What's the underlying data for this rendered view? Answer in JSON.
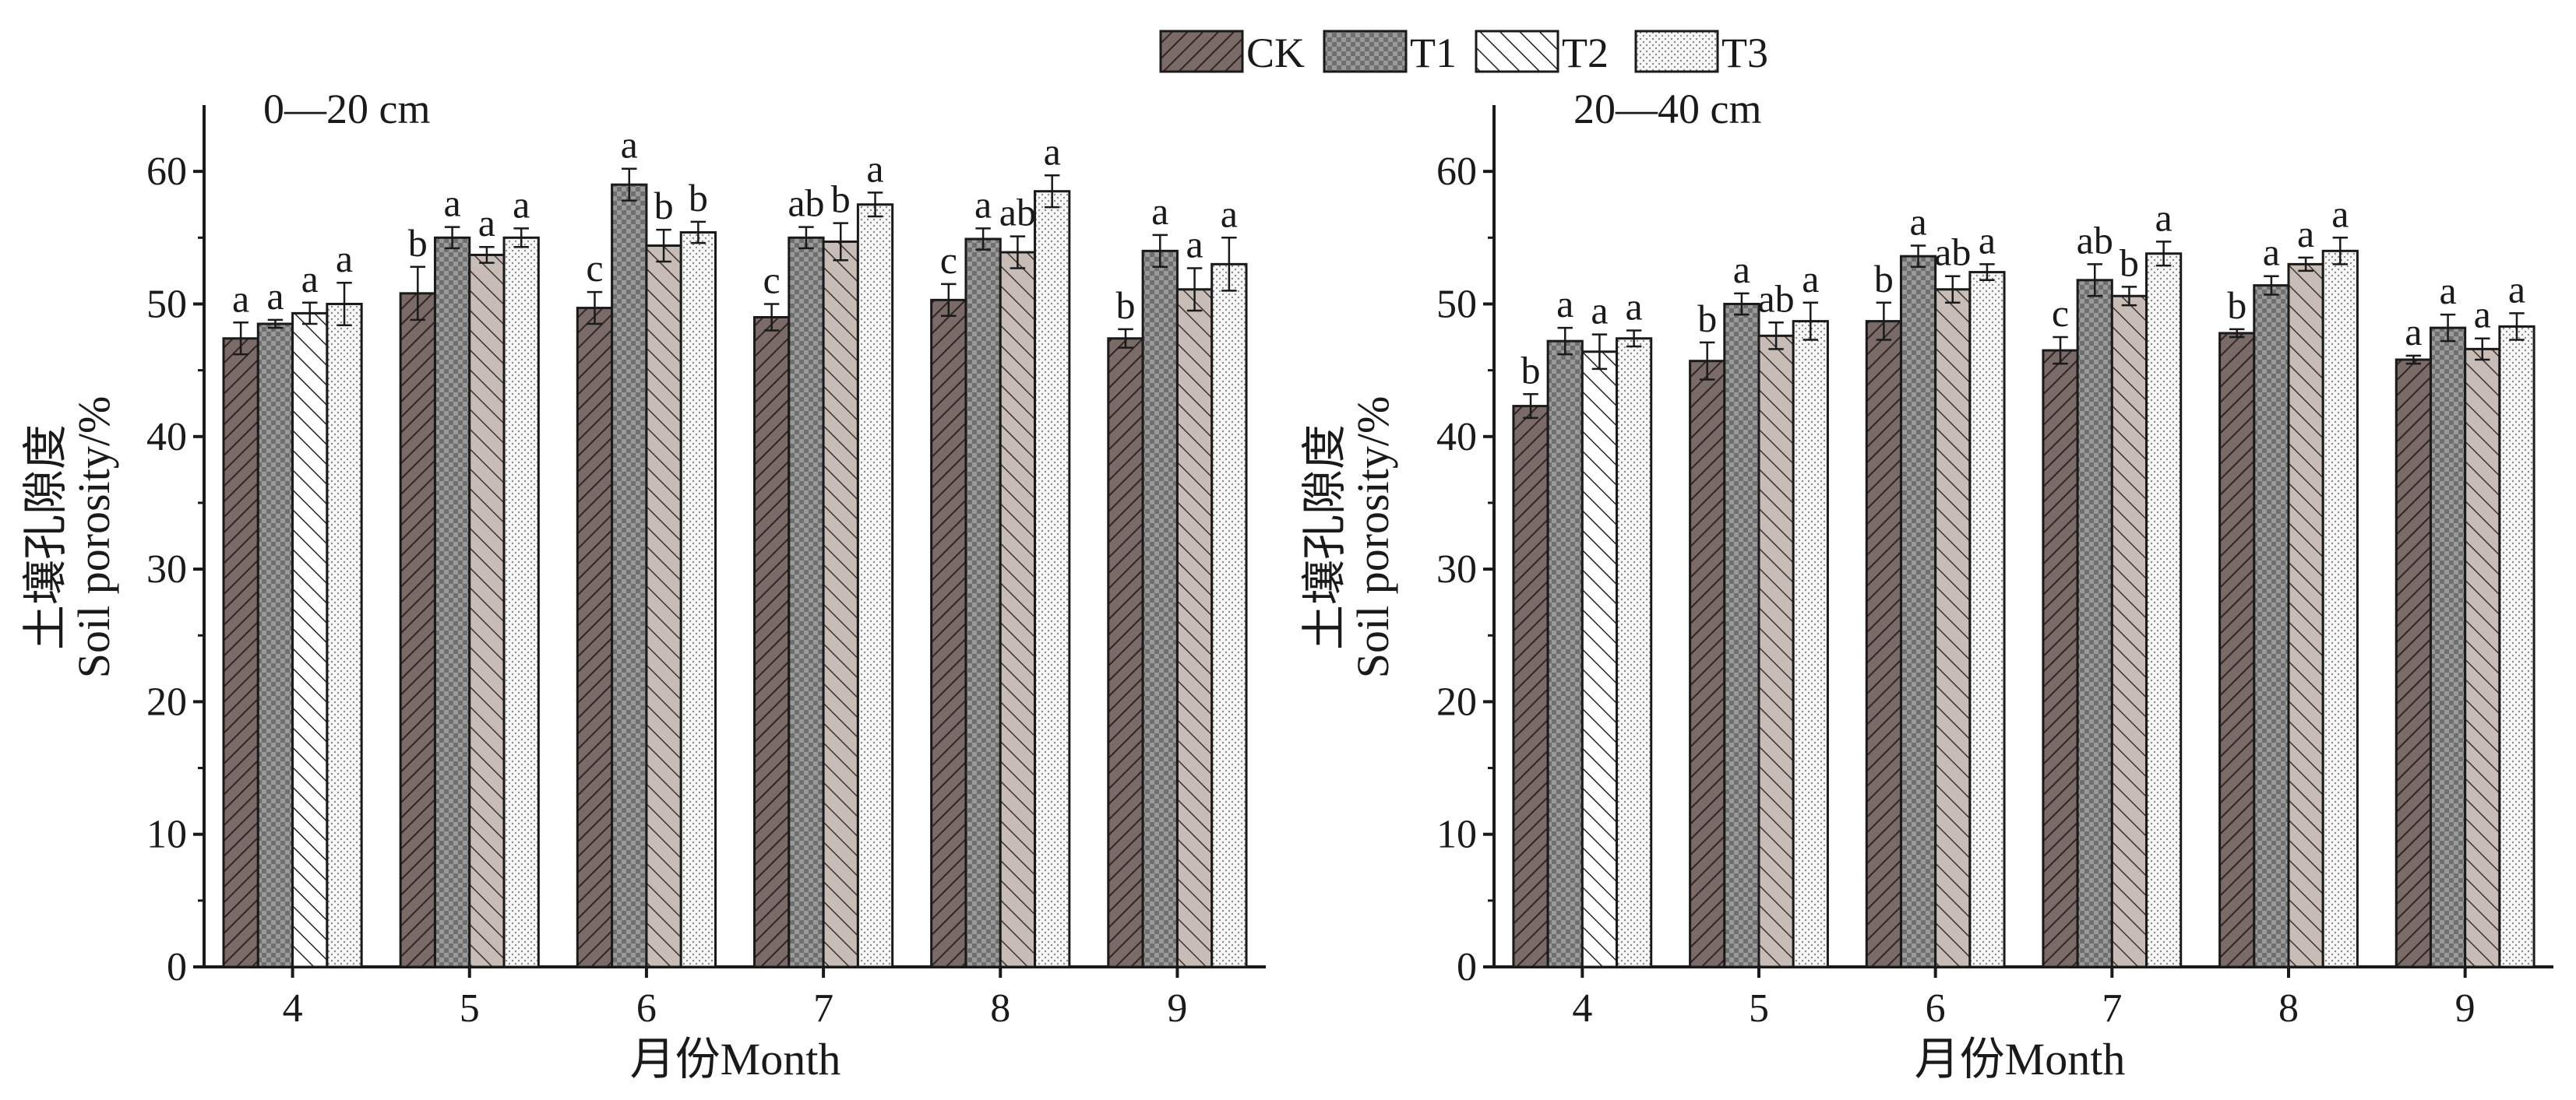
{
  "colors": {
    "CK": "#7a6b68",
    "T1": "#8b8b8b",
    "T2": "#ffffff",
    "T2_hatched": "#c7bcb6",
    "T3": "#ffffff",
    "axis": "#1a1a1a"
  },
  "chart_data": [
    {
      "type": "bar",
      "panel_label": "0—20 cm",
      "xlabel": "月份Month",
      "ylabel_zh": "土壤孔隙度",
      "ylabel_en": "Soil porosity/%",
      "ylim": [
        0,
        65
      ],
      "yticks": [
        0,
        10,
        20,
        30,
        40,
        50,
        60
      ],
      "categories": [
        "4",
        "5",
        "6",
        "7",
        "8",
        "9"
      ],
      "grid": false,
      "series": [
        {
          "name": "CK",
          "pattern": "hatch-dark",
          "values": [
            47.4,
            50.8,
            49.7,
            49.0,
            50.3,
            47.4
          ],
          "errors": [
            1.2,
            2.0,
            1.2,
            1.0,
            1.2,
            0.7
          ],
          "labels": [
            "a",
            "b",
            "c",
            "c",
            "c",
            "b"
          ]
        },
        {
          "name": "T1",
          "pattern": "checker",
          "values": [
            48.5,
            55.0,
            59.0,
            55.0,
            54.9,
            54.0
          ],
          "errors": [
            0.3,
            0.8,
            1.2,
            0.8,
            0.8,
            1.2
          ],
          "labels": [
            "a",
            "a",
            "a",
            "ab",
            "a",
            "a"
          ]
        },
        {
          "name": "T2",
          "pattern": "hatch-light",
          "values": [
            49.3,
            53.7,
            54.4,
            54.7,
            53.9,
            51.1
          ],
          "errors": [
            0.8,
            0.6,
            1.2,
            1.4,
            1.2,
            1.6
          ],
          "labels": [
            "a",
            "a",
            "b",
            "b",
            "ab",
            "a"
          ]
        },
        {
          "name": "T3",
          "pattern": "dots",
          "values": [
            50.0,
            55.0,
            55.4,
            57.5,
            58.5,
            53.0
          ],
          "errors": [
            1.6,
            0.7,
            0.8,
            0.9,
            1.2,
            2.0
          ],
          "labels": [
            "a",
            "a",
            "b",
            "a",
            "a",
            "a"
          ]
        }
      ]
    },
    {
      "type": "bar",
      "panel_label": "20—40 cm",
      "xlabel": "月份Month",
      "ylabel_zh": "土壤孔隙度",
      "ylabel_en": "Soil porosity/%",
      "ylim": [
        0,
        65
      ],
      "yticks": [
        0,
        10,
        20,
        30,
        40,
        50,
        60
      ],
      "categories": [
        "4",
        "5",
        "6",
        "7",
        "8",
        "9"
      ],
      "grid": false,
      "series": [
        {
          "name": "CK",
          "pattern": "hatch-dark",
          "values": [
            42.3,
            45.7,
            48.7,
            46.5,
            47.8,
            45.8
          ],
          "errors": [
            0.9,
            1.4,
            1.4,
            1.0,
            0.3,
            0.3
          ],
          "labels": [
            "b",
            "b",
            "b",
            "c",
            "b",
            "a"
          ]
        },
        {
          "name": "T1",
          "pattern": "checker",
          "values": [
            47.2,
            50.0,
            53.6,
            51.8,
            51.4,
            48.2
          ],
          "errors": [
            1.0,
            0.8,
            0.8,
            1.2,
            0.7,
            1.0
          ],
          "labels": [
            "a",
            "a",
            "a",
            "ab",
            "a",
            "a"
          ]
        },
        {
          "name": "T2",
          "pattern": "hatch-light",
          "values": [
            46.4,
            47.6,
            51.1,
            50.6,
            53.0,
            46.6
          ],
          "errors": [
            1.3,
            1.0,
            1.0,
            0.7,
            0.5,
            0.8
          ],
          "labels": [
            "a",
            "ab",
            "ab",
            "b",
            "a",
            "a"
          ]
        },
        {
          "name": "T3",
          "pattern": "dots",
          "values": [
            47.4,
            48.7,
            52.4,
            53.8,
            54.0,
            48.3
          ],
          "errors": [
            0.6,
            1.4,
            0.6,
            0.9,
            1.0,
            1.0
          ],
          "labels": [
            "a",
            "a",
            "a",
            "a",
            "a",
            "a"
          ]
        }
      ]
    }
  ],
  "legend": {
    "placement": "top-center",
    "entries": [
      "CK",
      "T1",
      "T2",
      "T3"
    ]
  }
}
